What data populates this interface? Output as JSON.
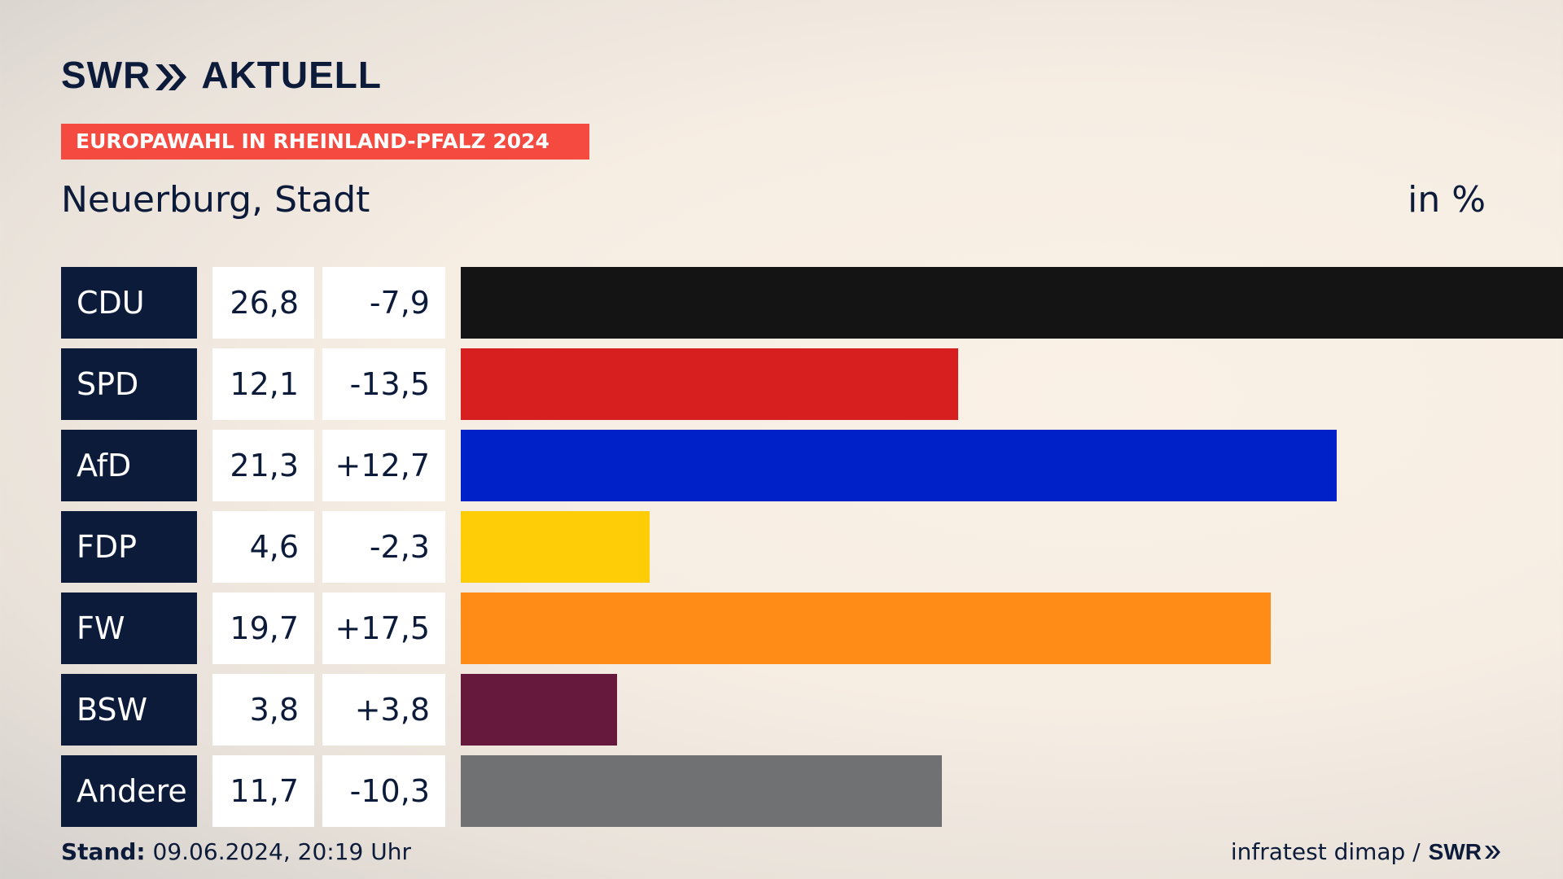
{
  "brand": {
    "name_left": "SWR",
    "name_right": "AKTUELL",
    "chevron_icon": "double-chevron-right-icon"
  },
  "tag": "EUROPAWAHL IN RHEINLAND-PFALZ 2024",
  "place": "Neuerburg, Stadt",
  "unit": "in %",
  "footer": {
    "stand_label": "Stand:",
    "stand_value": "09.06.2024, 20:19 Uhr",
    "source": "infratest dimap /",
    "source_brand": "SWR"
  },
  "colors": {
    "accent": "#f54a40",
    "navy": "#0d1b3a"
  },
  "chart_data": {
    "type": "bar",
    "orientation": "horizontal",
    "categories": [
      "CDU",
      "SPD",
      "AfD",
      "FDP",
      "FW",
      "BSW",
      "Andere"
    ],
    "values": [
      26.8,
      12.1,
      21.3,
      4.6,
      19.7,
      3.8,
      11.7
    ],
    "value_labels": [
      "26,8",
      "12,1",
      "21,3",
      "4,6",
      "19,7",
      "3,8",
      "11,7"
    ],
    "changes": [
      -7.9,
      -13.5,
      12.7,
      -2.3,
      17.5,
      3.8,
      -10.3
    ],
    "change_labels": [
      "-7,9",
      "-13,5",
      "+12,7",
      "-2,3",
      "+17,5",
      "+3,8",
      "-10,3"
    ],
    "bar_colors": [
      "#141414",
      "#d71f1f",
      "#0021c8",
      "#ffcc08",
      "#ff8c17",
      "#66183d",
      "#707173"
    ],
    "xlim": [
      0,
      26.8
    ]
  }
}
